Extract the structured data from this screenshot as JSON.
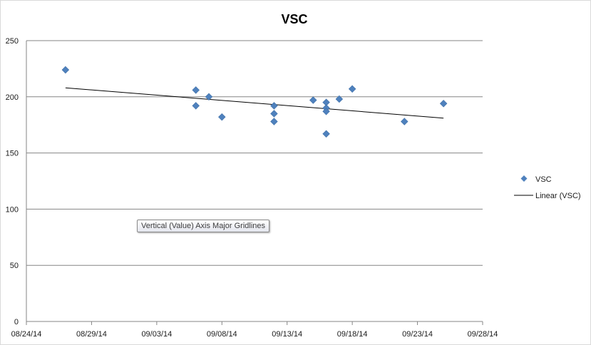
{
  "tooltip": {
    "text": "Vertical (Value) Axis Major Gridlines"
  },
  "colors": {
    "marker": "#4f81bd",
    "trendline": "#000000",
    "gridline": "#868686",
    "border": "#d9d9d9"
  },
  "chart_data": {
    "type": "scatter",
    "title": "VSC",
    "xlabel": "",
    "ylabel": "",
    "x_axis_type": "date",
    "xlim": [
      "2014-08-24",
      "2014-09-28"
    ],
    "ylim": [
      0,
      250
    ],
    "y_major_unit": 50,
    "x_tick_labels": [
      "08/24/14",
      "08/29/14",
      "09/03/14",
      "09/08/14",
      "09/13/14",
      "09/18/14",
      "09/23/14",
      "09/28/14"
    ],
    "y_tick_labels": [
      "0",
      "50",
      "100",
      "150",
      "200",
      "250"
    ],
    "grid": {
      "horizontal_major": true,
      "vertical": false
    },
    "legend_position": "right",
    "series": [
      {
        "name": "VSC",
        "marker": "diamond",
        "points": [
          {
            "x": "2014-08-27",
            "y": 224
          },
          {
            "x": "2014-09-06",
            "y": 206
          },
          {
            "x": "2014-09-06",
            "y": 192
          },
          {
            "x": "2014-09-07",
            "y": 200
          },
          {
            "x": "2014-09-08",
            "y": 182
          },
          {
            "x": "2014-09-12",
            "y": 192
          },
          {
            "x": "2014-09-12",
            "y": 185
          },
          {
            "x": "2014-09-12",
            "y": 178
          },
          {
            "x": "2014-09-15",
            "y": 197
          },
          {
            "x": "2014-09-16",
            "y": 195
          },
          {
            "x": "2014-09-16",
            "y": 190
          },
          {
            "x": "2014-09-16",
            "y": 187
          },
          {
            "x": "2014-09-16",
            "y": 167
          },
          {
            "x": "2014-09-17",
            "y": 198
          },
          {
            "x": "2014-09-18",
            "y": 207
          },
          {
            "x": "2014-09-22",
            "y": 178
          },
          {
            "x": "2014-09-25",
            "y": 194
          }
        ]
      }
    ],
    "trendline": {
      "name": "Linear (VSC)",
      "type": "linear",
      "start": {
        "x": "2014-08-27",
        "y": 208
      },
      "end": {
        "x": "2014-09-25",
        "y": 181
      }
    }
  }
}
